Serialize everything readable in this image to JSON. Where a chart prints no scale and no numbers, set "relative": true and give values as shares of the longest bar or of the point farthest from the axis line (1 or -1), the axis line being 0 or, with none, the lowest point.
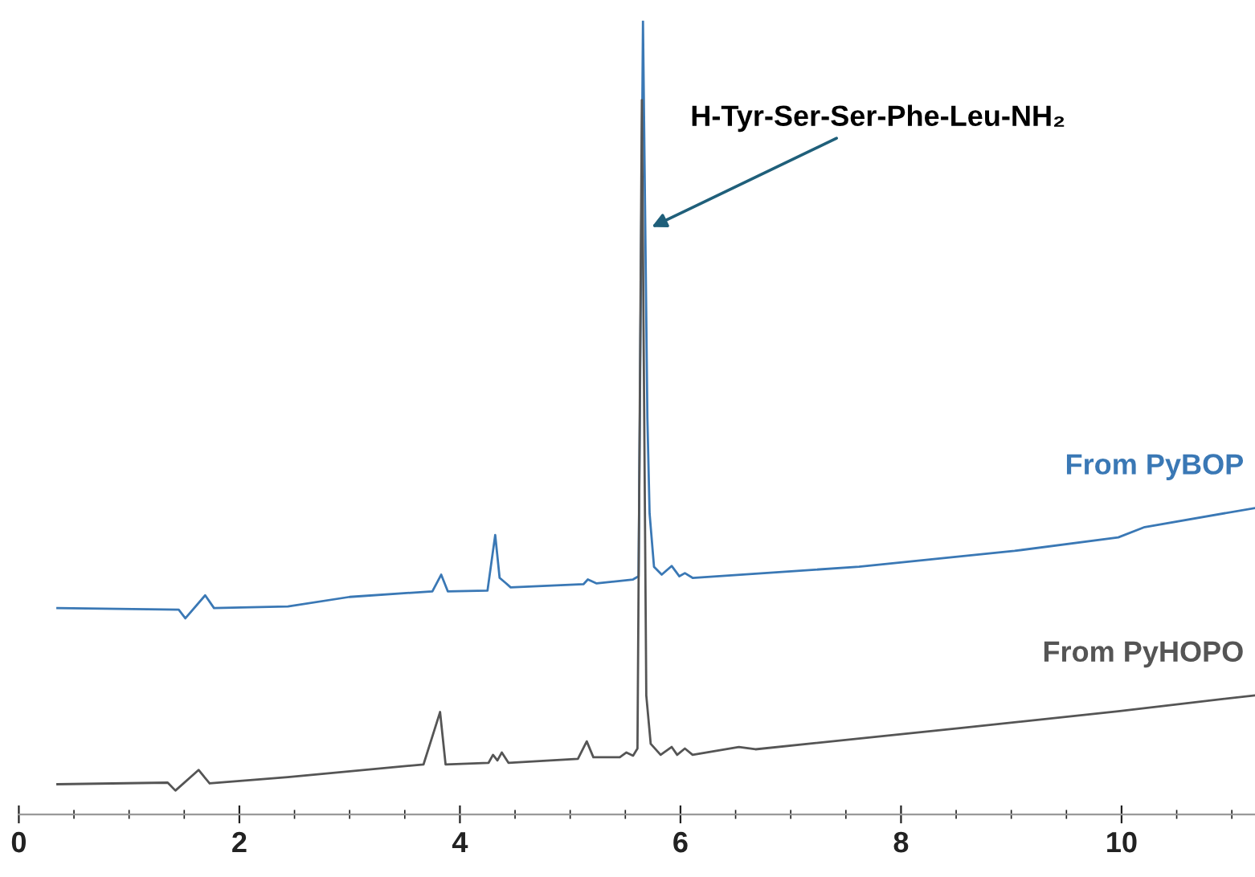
{
  "chart_data": {
    "type": "line",
    "relative": true,
    "xlim": [
      0,
      11.21
    ],
    "xticks": [
      0,
      2,
      4,
      6,
      8,
      10
    ],
    "grid": false,
    "legend": false,
    "marker": "none",
    "line_style": "solid",
    "annotations": [
      {
        "text": "H-Tyr-Ser-Ser-Phe-Leu-NH₂",
        "x": 5.74,
        "y": 0.74
      }
    ],
    "series": [
      {
        "name": "From PyBOP",
        "color": "#3a78b5",
        "x": [
          0.35,
          1.45,
          1.51,
          1.69,
          1.77,
          2.44,
          3.0,
          3.75,
          3.83,
          3.89,
          4.25,
          4.32,
          4.36,
          4.42,
          4.46,
          5.12,
          5.16,
          5.24,
          5.57,
          5.62,
          5.66,
          5.7,
          5.72,
          5.76,
          5.83,
          5.92,
          5.99,
          6.04,
          6.11,
          7.62,
          9.03,
          9.97,
          10.21,
          11.21
        ],
        "values": [
          0.26,
          0.258,
          0.247,
          0.276,
          0.26,
          0.262,
          0.274,
          0.281,
          0.302,
          0.281,
          0.282,
          0.352,
          0.298,
          0.291,
          0.286,
          0.29,
          0.296,
          0.291,
          0.296,
          0.3,
          1.0,
          0.5,
          0.379,
          0.312,
          0.302,
          0.313,
          0.3,
          0.304,
          0.298,
          0.312,
          0.332,
          0.349,
          0.362,
          0.386
        ]
      },
      {
        "name": "From PyHOPO",
        "color": "#555555",
        "x": [
          0.35,
          1.35,
          1.42,
          1.63,
          1.73,
          2.44,
          3.67,
          3.82,
          3.87,
          4.26,
          4.3,
          4.34,
          4.38,
          4.44,
          5.07,
          5.15,
          5.21,
          5.45,
          5.51,
          5.57,
          5.61,
          5.65,
          5.69,
          5.73,
          5.82,
          5.92,
          5.97,
          6.04,
          6.11,
          6.53,
          6.68,
          8.55,
          9.97,
          11.21
        ],
        "values": [
          0.038,
          0.04,
          0.03,
          0.056,
          0.039,
          0.047,
          0.063,
          0.129,
          0.063,
          0.065,
          0.075,
          0.068,
          0.078,
          0.065,
          0.07,
          0.092,
          0.072,
          0.072,
          0.078,
          0.074,
          0.083,
          0.9,
          0.15,
          0.089,
          0.075,
          0.085,
          0.075,
          0.083,
          0.075,
          0.085,
          0.082,
          0.109,
          0.13,
          0.15
        ]
      }
    ]
  }
}
